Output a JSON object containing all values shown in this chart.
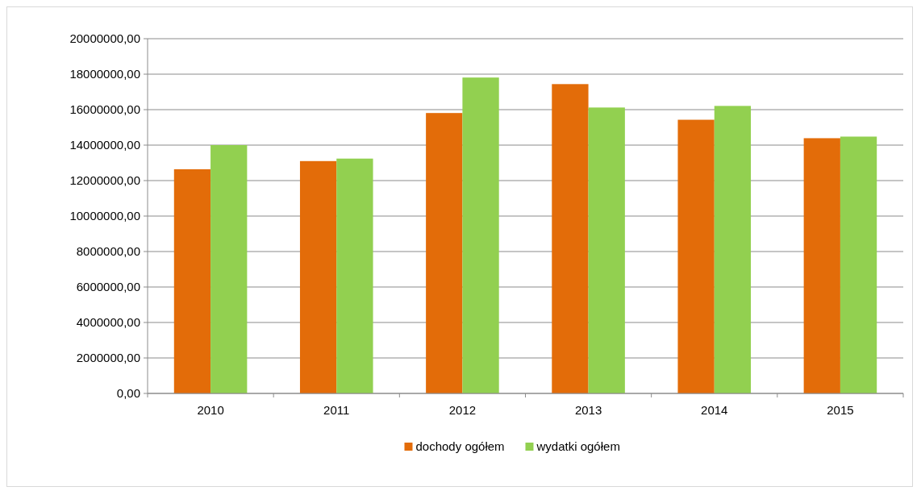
{
  "chart_data": {
    "type": "bar",
    "categories": [
      "2010",
      "2011",
      "2012",
      "2013",
      "2014",
      "2015"
    ],
    "series": [
      {
        "name": "dochody ogółem",
        "color": "#e36c09",
        "values": [
          12640000,
          13100000,
          15810000,
          17440000,
          15430000,
          14390000
        ]
      },
      {
        "name": "wydatki ogółem",
        "color": "#92d050",
        "values": [
          14000000,
          13240000,
          17810000,
          16120000,
          16210000,
          14480000
        ]
      }
    ],
    "ylim": [
      0,
      20000000
    ],
    "yticks": [
      {
        "value": 0,
        "label": "0,00"
      },
      {
        "value": 2000000,
        "label": "2000000,00"
      },
      {
        "value": 4000000,
        "label": "4000000,00"
      },
      {
        "value": 6000000,
        "label": "6000000,00"
      },
      {
        "value": 8000000,
        "label": "8000000,00"
      },
      {
        "value": 10000000,
        "label": "10000000,00"
      },
      {
        "value": 12000000,
        "label": "12000000,00"
      },
      {
        "value": 14000000,
        "label": "14000000,00"
      },
      {
        "value": 16000000,
        "label": "16000000,00"
      },
      {
        "value": 18000000,
        "label": "18000000,00"
      },
      {
        "value": 20000000,
        "label": "20000000,00"
      }
    ],
    "grid": "y",
    "legend": "bottom"
  }
}
